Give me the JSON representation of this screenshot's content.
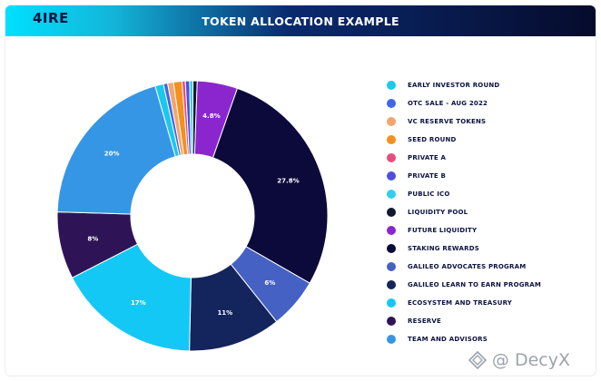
{
  "header": {
    "logo_text": "4IRE",
    "logo_subtext": "",
    "title": "TOKEN ALLOCATION EXAMPLE"
  },
  "watermark": {
    "text": "@ DecyX"
  },
  "colors": {
    "header_gradient": [
      "#00e0ff",
      "#0a2a6f",
      "#060b2c"
    ],
    "label_text": "#ffffff"
  },
  "chart_data": {
    "type": "pie",
    "title": "TOKEN ALLOCATION EXAMPLE",
    "donut": true,
    "legend_position": "right",
    "series": [
      {
        "name": "EARLY INVESTOR ROUND",
        "value": 1.0,
        "color": "#1cc7ee",
        "label": ""
      },
      {
        "name": "OTC SALE - AUG 2022",
        "value": 0.5,
        "color": "#3f66e8",
        "label": ""
      },
      {
        "name": "VC RESERVE TOKENS",
        "value": 0.7,
        "color": "#f5a56b",
        "label": ""
      },
      {
        "name": "SEED ROUND",
        "value": 1.0,
        "color": "#f58f1f",
        "label": ""
      },
      {
        "name": "PRIVATE A",
        "value": 0.4,
        "color": "#ea4c7f",
        "label": ""
      },
      {
        "name": "PRIVATE B",
        "value": 0.5,
        "color": "#4e4fe0",
        "label": ""
      },
      {
        "name": "PUBLIC ICO",
        "value": 0.4,
        "color": "#2fd0ef",
        "label": ""
      },
      {
        "name": "LIQUIDITY POOL",
        "value": 0.5,
        "color": "#121830",
        "label": ""
      },
      {
        "name": "FUTURE LIQUIDITY",
        "value": 4.8,
        "color": "#8b26cf",
        "label": "4.8%"
      },
      {
        "name": "STAKING REWARDS",
        "value": 27.8,
        "color": "#0b0a3a",
        "label": "27.8%"
      },
      {
        "name": "GALILEO ADVOCATES PROGRAM",
        "value": 6.0,
        "color": "#4661c4",
        "label": "6%"
      },
      {
        "name": "GALILEO LEARN TO EARN PROGRAM",
        "value": 11.0,
        "color": "#14245c",
        "label": "11%"
      },
      {
        "name": "ECOSYSTEM AND TREASURY",
        "value": 17.0,
        "color": "#14c8f5",
        "label": "17%"
      },
      {
        "name": "RESERVE",
        "value": 8.0,
        "color": "#2e1457",
        "label": "8%"
      },
      {
        "name": "TEAM AND ADVISORS",
        "value": 20.0,
        "color": "#3596e6",
        "label": "20%"
      }
    ]
  }
}
